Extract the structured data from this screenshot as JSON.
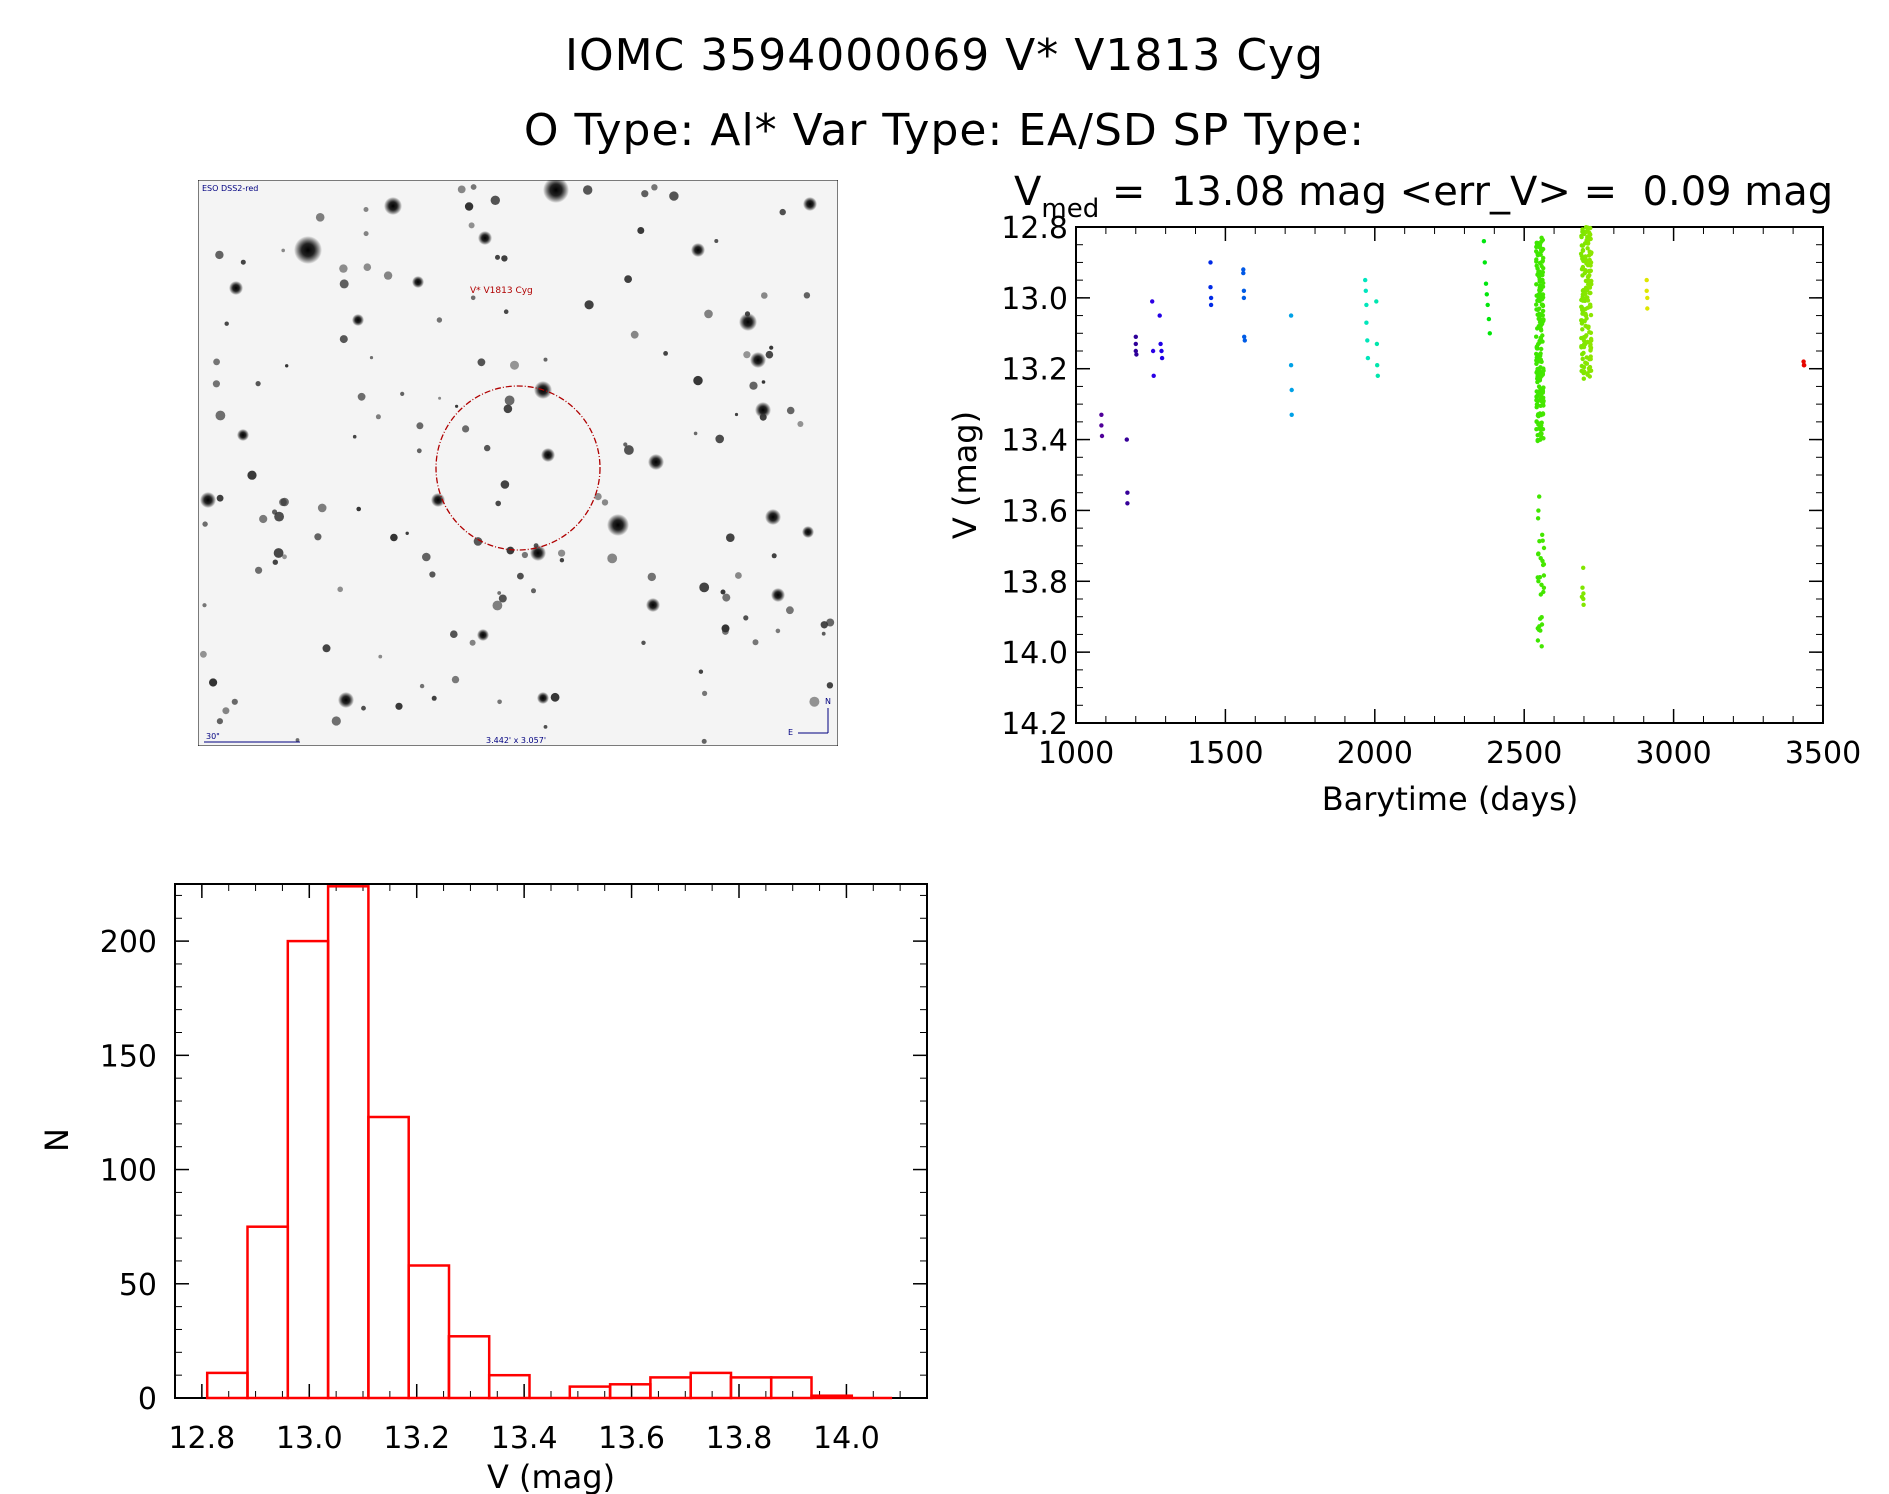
{
  "titles": {
    "line1": "IOMC 3594000069    V* V1813 Cyg",
    "line2": "O Type: Al*  Var Type: EA/SD  SP Type:"
  },
  "finder_chart": {
    "survey_label": "ESO DSS2-red",
    "target_label": "V* V1813 Cyg",
    "scale_label": "30\"",
    "fov_label": "3.442' x 3.057'",
    "north_label": "N",
    "east_label": "E"
  },
  "colors": {
    "histogram": "#ff0000",
    "target_circle": "#b00000",
    "blue_label": "#000080"
  },
  "chart_data": [
    {
      "type": "scatter",
      "title": "V_med = 13.08 mag <err_V> = 0.09 mag",
      "title_parts": {
        "v": "V",
        "sub": "med",
        "rest": " =  13.08 mag <err_V> =  0.09 mag"
      },
      "xlabel": "Barytime (days)",
      "ylabel": "V (mag)",
      "xlim": [
        1000,
        3500
      ],
      "ylim": [
        14.2,
        12.8
      ],
      "x_ticks": [
        1000,
        1500,
        2000,
        2500,
        3000,
        3500
      ],
      "y_ticks": [
        "12.8",
        "13.0",
        "13.2",
        "13.4",
        "13.6",
        "13.8",
        "14.0",
        "14.2"
      ],
      "series": [
        {
          "x": [
            1085,
            1085,
            1087
          ],
          "y": [
            13.33,
            13.36,
            13.39
          ]
        },
        {
          "x": [
            1170,
            1172,
            1172
          ],
          "y": [
            13.4,
            13.55,
            13.58
          ]
        },
        {
          "x": [
            1200,
            1200,
            1200,
            1202
          ],
          "y": [
            13.11,
            13.13,
            13.15,
            13.16
          ]
        },
        {
          "x": [
            1255,
            1258,
            1260,
            1280,
            1283,
            1286,
            1288
          ],
          "y": [
            13.01,
            13.15,
            13.22,
            13.05,
            13.13,
            13.15,
            13.17
          ]
        },
        {
          "x": [
            1450,
            1450,
            1452,
            1452
          ],
          "y": [
            12.9,
            12.97,
            13.0,
            13.02
          ]
        },
        {
          "x": [
            1560,
            1560,
            1562,
            1562,
            1563,
            1565
          ],
          "y": [
            12.92,
            12.93,
            12.98,
            13.0,
            13.11,
            13.12
          ]
        },
        {
          "x": [
            1720,
            1720,
            1722,
            1722
          ],
          "y": [
            13.05,
            13.19,
            13.26,
            13.33
          ]
        },
        {
          "x": [
            1968,
            1970,
            1972,
            1972,
            1975,
            1977,
            2005,
            2007,
            2008,
            2010
          ],
          "y": [
            12.95,
            12.98,
            13.02,
            13.07,
            13.12,
            13.17,
            13.01,
            13.13,
            13.19,
            13.22
          ]
        },
        {
          "x": [
            2365,
            2368,
            2372,
            2375,
            2378,
            2382,
            2385
          ],
          "y": [
            12.84,
            12.9,
            12.96,
            12.99,
            13.02,
            13.06,
            13.1
          ]
        },
        {
          "x": [
            2910,
            2910,
            2912,
            2912
          ],
          "y": [
            12.95,
            12.98,
            13.0,
            13.03
          ]
        },
        {
          "x": [
            3435,
            3436,
            3437
          ],
          "y": [
            13.18,
            13.19,
            13.19
          ]
        }
      ],
      "dense_bands": [
        {
          "name": "2550-band",
          "x_range": [
            2540,
            2565
          ],
          "y_range": [
            12.83,
            13.42
          ],
          "count": 200
        },
        {
          "name": "2550-eclipse",
          "x_range": [
            2545,
            2568
          ],
          "y_range": [
            13.56,
            14.0
          ],
          "count": 30
        },
        {
          "name": "2710-band",
          "x_range": [
            2690,
            2725
          ],
          "y_range": [
            12.8,
            13.23
          ],
          "count": 160
        },
        {
          "name": "2710-eclipse",
          "x_range": [
            2692,
            2700
          ],
          "y_range": [
            13.76,
            13.88
          ],
          "count": 6
        }
      ]
    },
    {
      "type": "histogram",
      "xlabel": "V (mag)",
      "ylabel": "N",
      "xlim": [
        12.75,
        14.15
      ],
      "ylim": [
        0,
        225
      ],
      "x_ticks": [
        "12.8",
        "13.0",
        "13.2",
        "13.4",
        "13.6",
        "13.8",
        "14.0"
      ],
      "y_ticks": [
        "0",
        "50",
        "100",
        "150",
        "200"
      ],
      "bin_edges": [
        12.81,
        12.885,
        12.96,
        13.035,
        13.11,
        13.185,
        13.26,
        13.335,
        13.41,
        13.485,
        13.56,
        13.635,
        13.71,
        13.785,
        13.86,
        13.935,
        14.01,
        14.085
      ],
      "counts": [
        11,
        75,
        200,
        224,
        123,
        58,
        27,
        10,
        0,
        5,
        6,
        9,
        11,
        9,
        9,
        1,
        0
      ]
    }
  ]
}
